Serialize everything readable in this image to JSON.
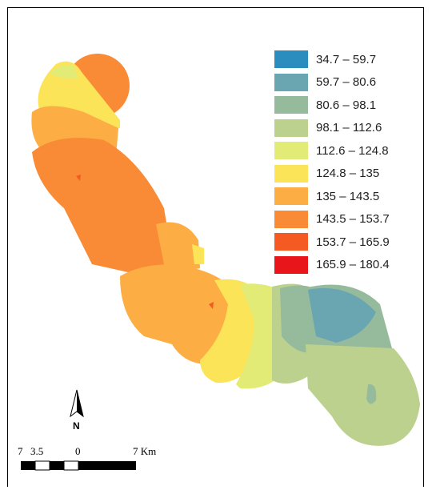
{
  "legend": {
    "classes": [
      {
        "label": "34.7 – 59.7",
        "color": "#2b8cbe"
      },
      {
        "label": "59.7 – 80.6",
        "color": "#6aa6b1"
      },
      {
        "label": "80.6 – 98.1",
        "color": "#95bb9c"
      },
      {
        "label": "98.1 – 112.6",
        "color": "#bdd18e"
      },
      {
        "label": "112.6 – 124.8",
        "color": "#e2eb76"
      },
      {
        "label": "124.8 – 135",
        "color": "#fce459"
      },
      {
        "label": "135 – 143.5",
        "color": "#fcad44"
      },
      {
        "label": "143.5 – 153.7",
        "color": "#f98b36"
      },
      {
        "label": "153.7 – 165.9",
        "color": "#f45a22"
      },
      {
        "label": "165.9 – 180.4",
        "color": "#e8151b"
      }
    ]
  },
  "north_arrow": {
    "label": "N",
    "icon": "north-arrow-icon"
  },
  "scale_bar": {
    "labels": [
      "7",
      "3.5",
      "0",
      "7 Km"
    ]
  }
}
